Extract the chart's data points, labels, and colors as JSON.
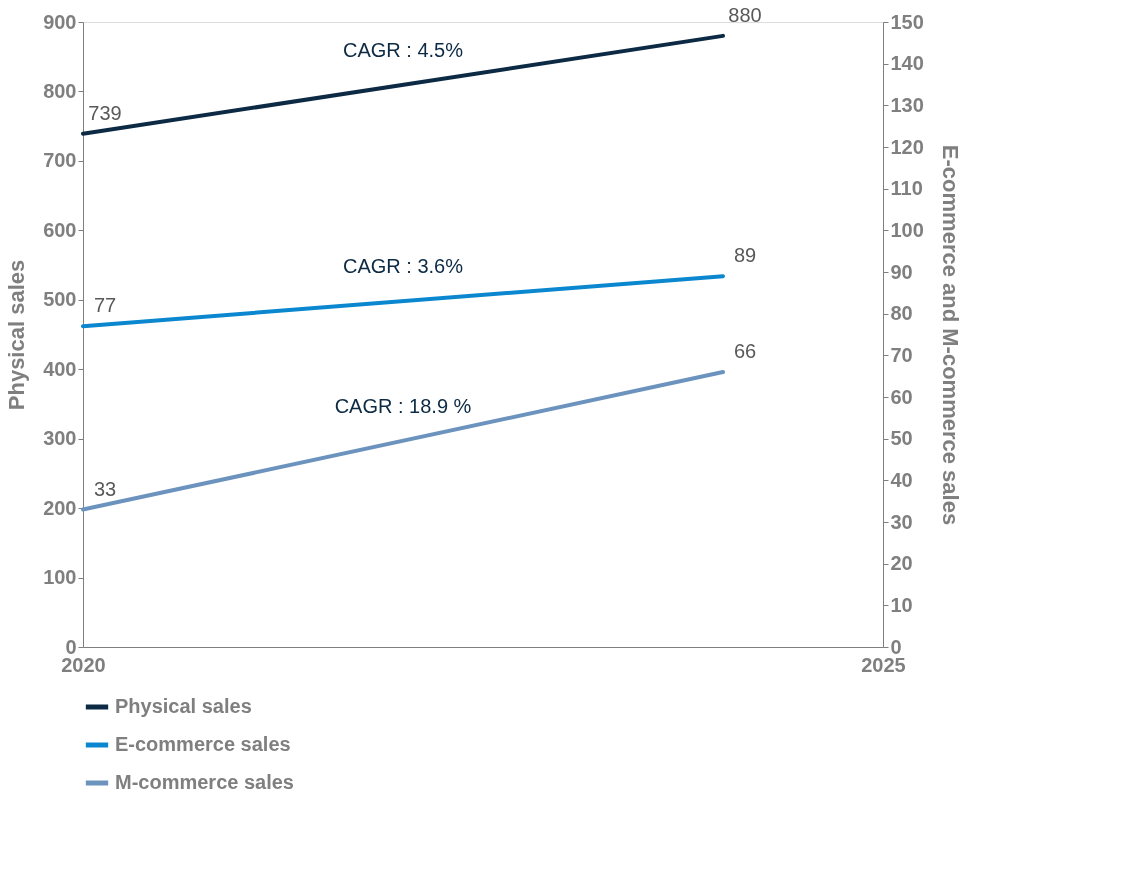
{
  "chart_data": {
    "type": "line",
    "x": [
      2020,
      2024
    ],
    "xlim": [
      2020,
      2025
    ],
    "xticks": [
      2020,
      2025
    ],
    "ylabel": "Physical sales",
    "y2label": "E-commerce and M-commerce sales",
    "ylim": [
      0,
      900
    ],
    "yticks": [
      0,
      100,
      200,
      300,
      400,
      500,
      600,
      700,
      800,
      900
    ],
    "y2lim": [
      0,
      150
    ],
    "y2ticks": [
      0,
      10,
      20,
      30,
      40,
      50,
      60,
      70,
      80,
      90,
      100,
      110,
      120,
      130,
      140,
      150
    ],
    "series": [
      {
        "name": "Physical sales",
        "color": "#0c2a44",
        "values": [
          739,
          880
        ]
      },
      {
        "name": "E-commerce sales",
        "color": "#0a87cf",
        "values": [
          77,
          89
        ],
        "axis": "y2"
      },
      {
        "name": "M-commerce sales",
        "color": "#6b93be",
        "values": [
          33,
          66
        ],
        "axis": "y2"
      }
    ],
    "data_labels": true,
    "grid": false,
    "legend": "bottom",
    "marker": "none",
    "line_style": "solid",
    "annotations": [
      "CAGR : 4.5%",
      "CAGR : 3.6%",
      "CAGR : 18.9 %"
    ]
  }
}
